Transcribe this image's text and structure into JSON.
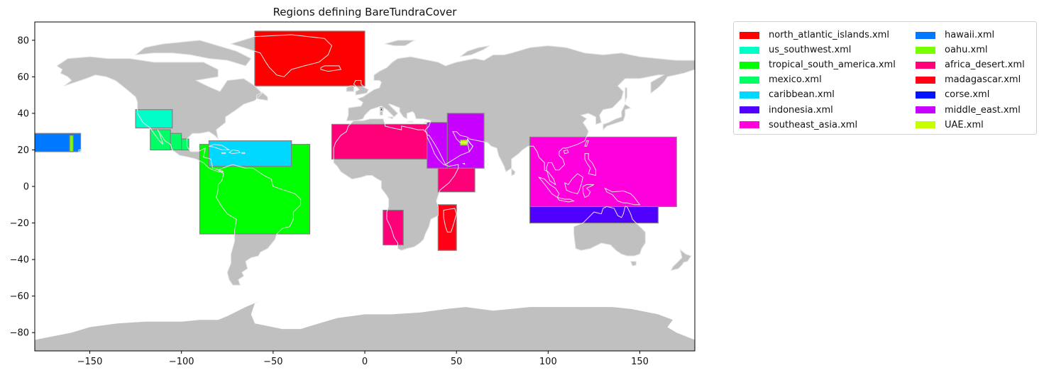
{
  "figure": {
    "title": "Regions defining BareTundraCover",
    "land_color": "#c0c0c0",
    "coast_color": "#e6e6e6",
    "box_edge_color": "#808080"
  },
  "chart_data": {
    "type": "map",
    "title": "Regions defining BareTundraCover",
    "xlabel": "",
    "ylabel": "",
    "xlim": [
      -180,
      180
    ],
    "ylim": [
      -90,
      90
    ],
    "xticks": [
      -150,
      -100,
      -50,
      0,
      50,
      100,
      150
    ],
    "yticks": [
      -80,
      -60,
      -40,
      -20,
      0,
      20,
      40,
      60,
      80
    ],
    "grid": false,
    "legend_position": "outside-right",
    "regions": [
      {
        "name": "north_atlantic_islands.xml",
        "color": "#ff0000",
        "boxes": [
          [
            -60,
            55,
            0,
            85
          ]
        ]
      },
      {
        "name": "us_southwest.xml",
        "color": "#00ffc8",
        "boxes": [
          [
            -125,
            32,
            -105,
            42
          ]
        ]
      },
      {
        "name": "tropical_south_america.xml",
        "color": "#00ff00",
        "boxes": [
          [
            -90,
            -26,
            -30,
            23
          ]
        ]
      },
      {
        "name": "mexico.xml",
        "color": "#00ff64",
        "boxes": [
          [
            -117,
            20,
            -106,
            31
          ],
          [
            -106,
            20,
            -100,
            29
          ],
          [
            -100,
            20,
            -96,
            26
          ]
        ]
      },
      {
        "name": "caribbean.xml",
        "color": "#00d8ff",
        "boxes": [
          [
            -85,
            11,
            -40,
            25
          ]
        ]
      },
      {
        "name": "indonesia.xml",
        "color": "#5000ff",
        "boxes": [
          [
            90,
            -20,
            160,
            -11
          ]
        ]
      },
      {
        "name": "southeast_asia.xml",
        "color": "#ff00dc",
        "boxes": [
          [
            90,
            -11,
            170,
            27
          ]
        ]
      },
      {
        "name": "hawaii.xml",
        "color": "#0078ff",
        "boxes": [
          [
            -180,
            19,
            -155,
            29
          ]
        ]
      },
      {
        "name": "oahu.xml",
        "color": "#78ff00",
        "boxes": [
          [
            -161,
            19,
            -159,
            28
          ]
        ]
      },
      {
        "name": "africa_desert.xml",
        "color": "#ff0078",
        "boxes": [
          [
            -18,
            15,
            35,
            34
          ],
          [
            40,
            -3,
            60,
            10
          ],
          [
            10,
            -32,
            21,
            -13
          ]
        ]
      },
      {
        "name": "madagascar.xml",
        "color": "#ff0014",
        "boxes": [
          [
            40,
            -35,
            50,
            -10
          ]
        ]
      },
      {
        "name": "corse.xml",
        "color": "#0014ff",
        "boxes": [
          [
            8.5,
            41.3,
            9.7,
            43.1
          ]
        ]
      },
      {
        "name": "middle_east.xml",
        "color": "#c800ff",
        "boxes": [
          [
            34,
            10,
            45,
            35
          ],
          [
            45,
            10,
            65,
            40
          ]
        ]
      },
      {
        "name": "UAE.xml",
        "color": "#c8ff00",
        "boxes": [
          [
            52,
            22.5,
            56,
            25.5
          ]
        ]
      }
    ]
  },
  "legend": {
    "columns": [
      [
        {
          "label": "north_atlantic_islands.xml",
          "color": "#ff0000"
        },
        {
          "label": "us_southwest.xml",
          "color": "#00ffc8"
        },
        {
          "label": "tropical_south_america.xml",
          "color": "#00ff00"
        },
        {
          "label": "mexico.xml",
          "color": "#00ff64"
        },
        {
          "label": "caribbean.xml",
          "color": "#00d8ff"
        },
        {
          "label": "indonesia.xml",
          "color": "#5000ff"
        },
        {
          "label": "southeast_asia.xml",
          "color": "#ff00dc"
        }
      ],
      [
        {
          "label": "hawaii.xml",
          "color": "#0078ff"
        },
        {
          "label": "oahu.xml",
          "color": "#78ff00"
        },
        {
          "label": "africa_desert.xml",
          "color": "#ff0078"
        },
        {
          "label": "madagascar.xml",
          "color": "#ff0014"
        },
        {
          "label": "corse.xml",
          "color": "#0014ff"
        },
        {
          "label": "middle_east.xml",
          "color": "#c800ff"
        },
        {
          "label": "UAE.xml",
          "color": "#c8ff00"
        }
      ]
    ]
  }
}
